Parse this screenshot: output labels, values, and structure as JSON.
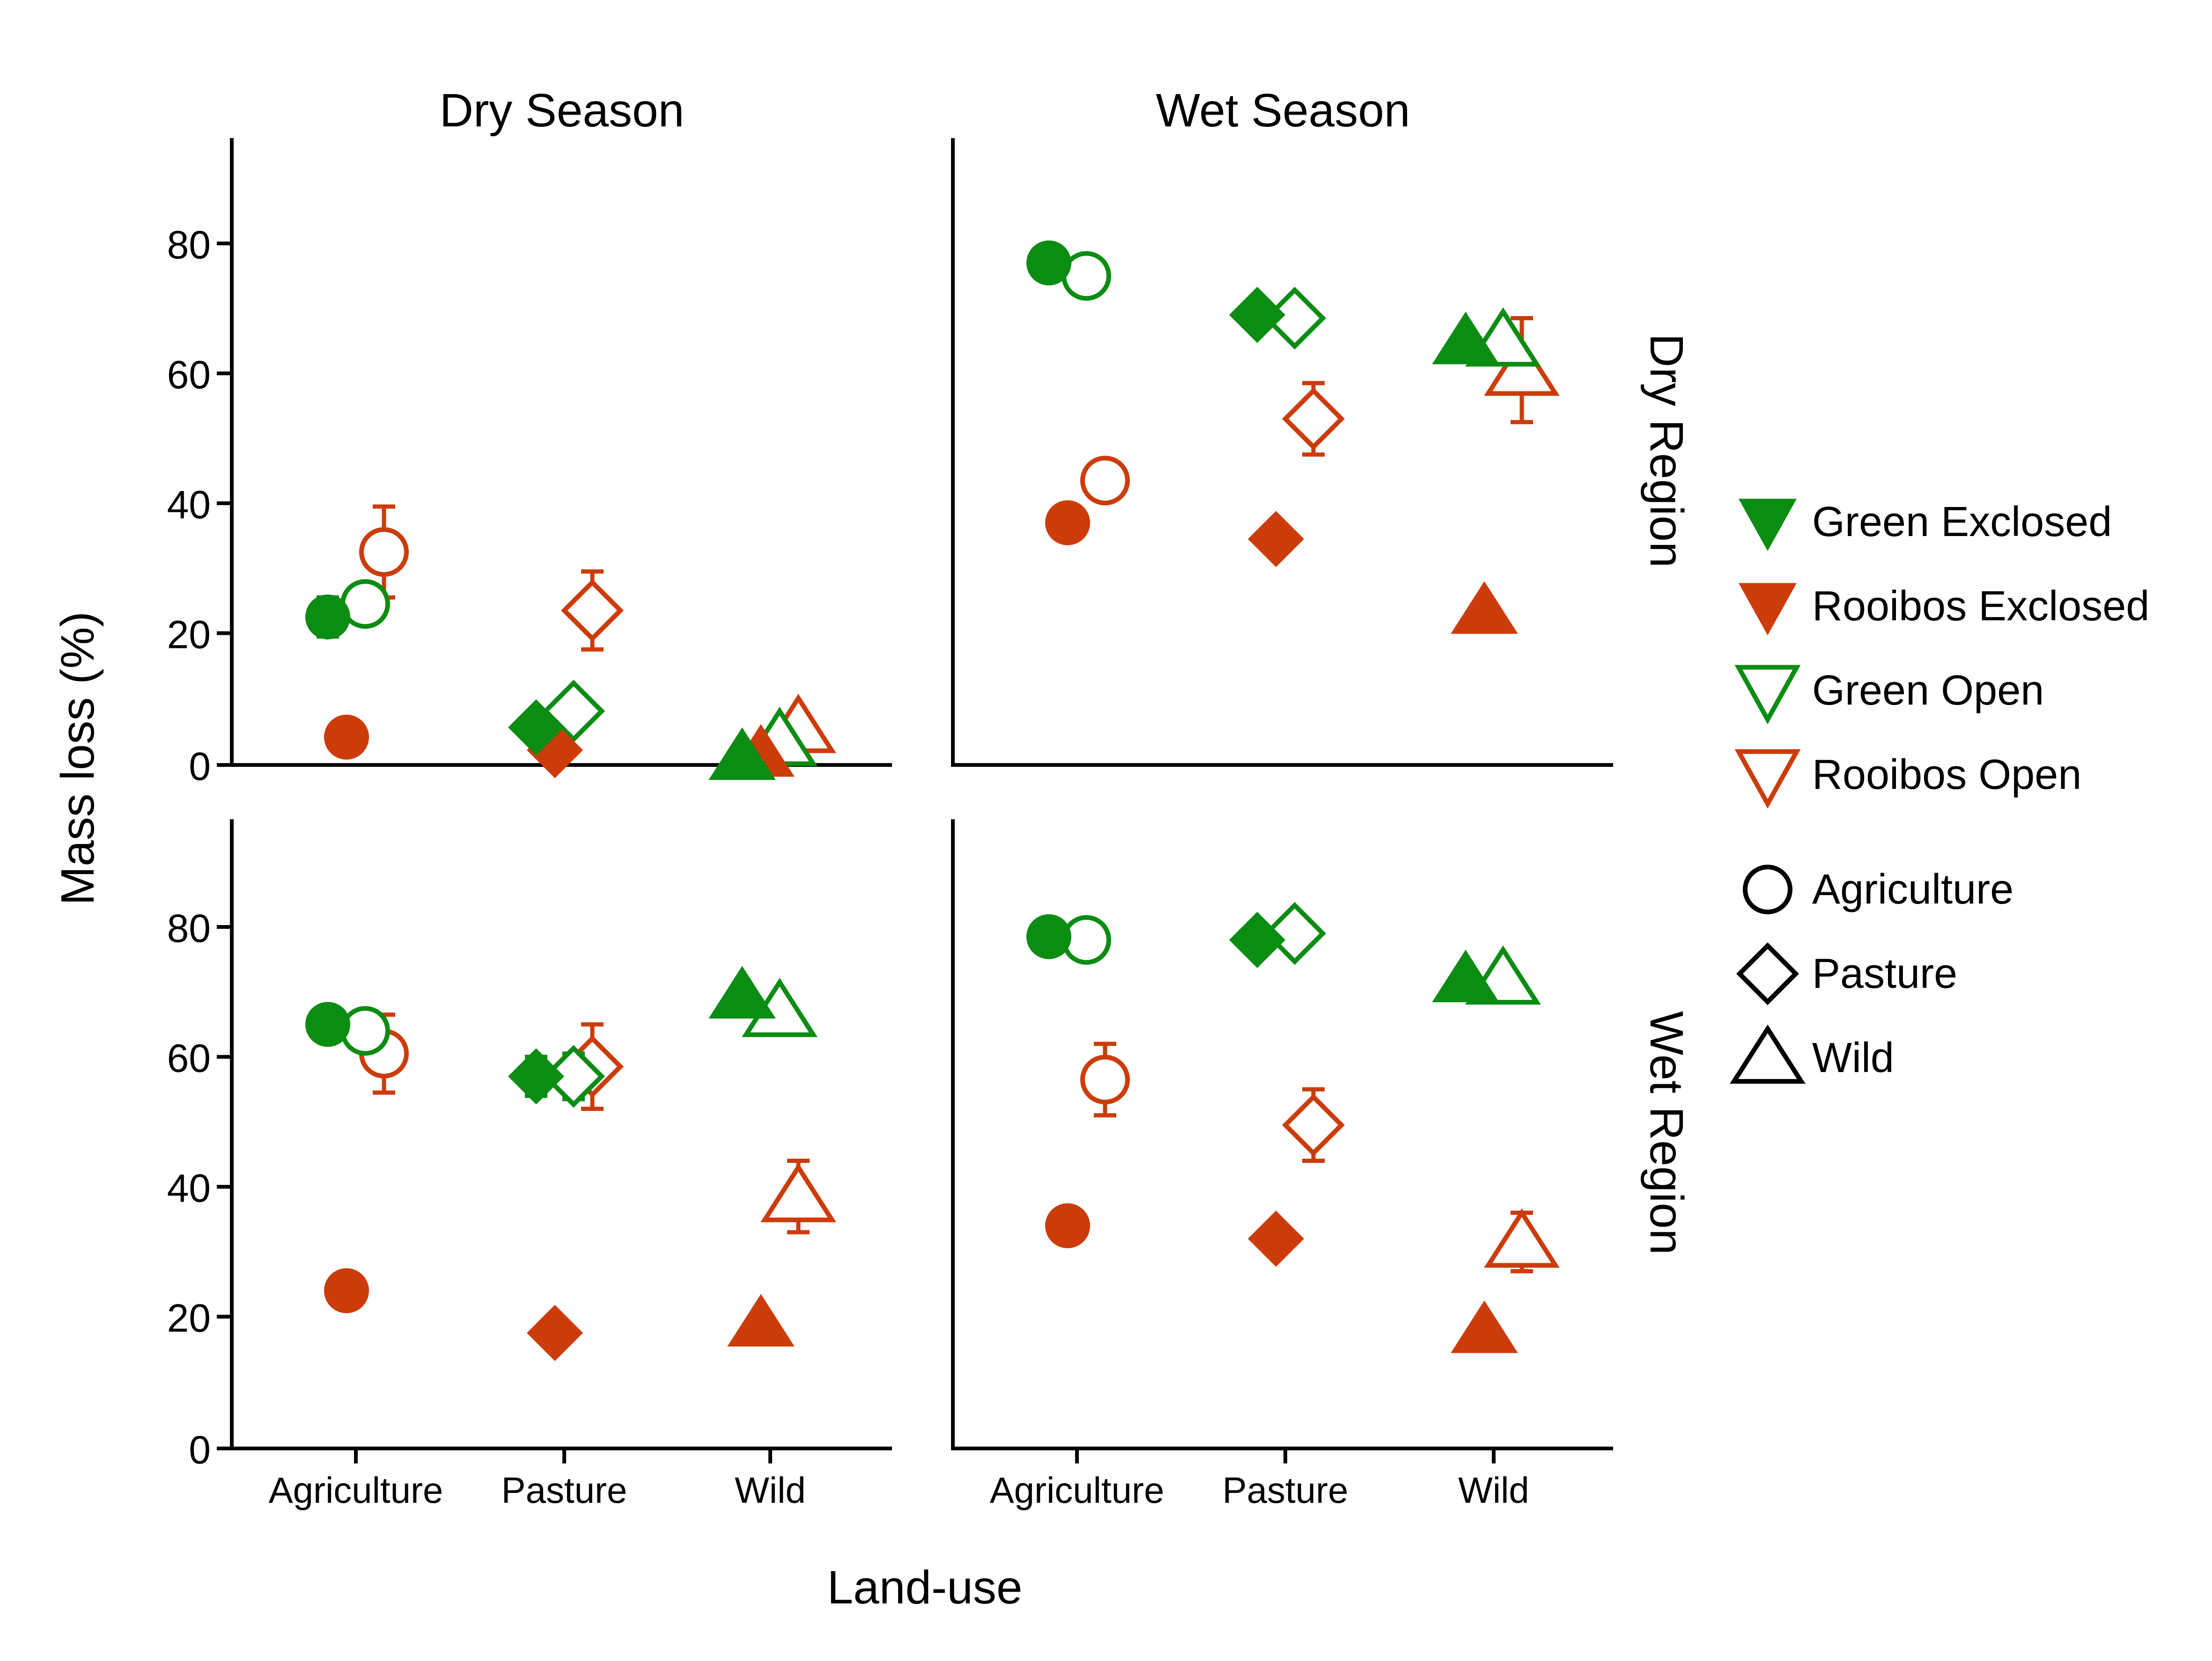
{
  "colors": {
    "green": "#0b8c12",
    "rooibos": "#cc3c0a",
    "axis": "#000000"
  },
  "chart_data": {
    "type": "scatter",
    "xlabel": "Land-use",
    "ylabel": "Mass loss (%)",
    "column_labels": [
      "Dry Season",
      "Wet Season"
    ],
    "row_labels": [
      "Dry Region",
      "Wet Region"
    ],
    "categories": [
      "Agriculture",
      "Pasture",
      "Wild"
    ],
    "yticks": [
      0,
      20,
      40,
      60,
      80
    ],
    "ylim": [
      0,
      95
    ],
    "grid": false,
    "legend": {
      "placement": "right",
      "treatments": [
        {
          "label": "Green Exclosed",
          "color": "green",
          "filled": true
        },
        {
          "label": "Rooibos Exclosed",
          "color": "rooibos",
          "filled": true
        },
        {
          "label": "Green Open",
          "color": "green",
          "filled": false
        },
        {
          "label": "Rooibos Open",
          "color": "rooibos",
          "filled": false
        }
      ],
      "land_uses": [
        {
          "label": "Agriculture",
          "shape": "circle"
        },
        {
          "label": "Pasture",
          "shape": "diamond"
        },
        {
          "label": "Wild",
          "shape": "triangle"
        }
      ]
    },
    "series_order": [
      "Green Exclosed",
      "Rooibos Exclosed",
      "Green Open",
      "Rooibos Open"
    ],
    "panels": [
      {
        "season": "Dry Season",
        "region": "Dry Region",
        "values": {
          "Agriculture": [
            [
              22.5,
              3
            ],
            [
              4,
              0
            ],
            [
              24.5,
              3
            ],
            [
              32.5,
              7
            ]
          ],
          "Pasture": [
            [
              5.5,
              1.5
            ],
            [
              2,
              0
            ],
            [
              8,
              1.5
            ],
            [
              23.5,
              6
            ]
          ],
          "Wild": [
            [
              1,
              1
            ],
            [
              1.5,
              0
            ],
            [
              3.5,
              1
            ],
            [
              5.5,
              1
            ]
          ]
        }
      },
      {
        "season": "Wet Season",
        "region": "Dry Region",
        "values": {
          "Agriculture": [
            [
              77,
              0
            ],
            [
              37,
              0
            ],
            [
              75,
              0
            ],
            [
              43.5,
              3
            ]
          ],
          "Pasture": [
            [
              69,
              0
            ],
            [
              34.5,
              0
            ],
            [
              68.5,
              0
            ],
            [
              53,
              5.5
            ]
          ],
          "Wild": [
            [
              65,
              0
            ],
            [
              23.5,
              0
            ],
            [
              65,
              0
            ],
            [
              60.5,
              8
            ]
          ]
        }
      },
      {
        "season": "Dry Season",
        "region": "Wet Region",
        "values": {
          "Agriculture": [
            [
              65,
              0
            ],
            [
              24,
              0
            ],
            [
              64,
              1.5
            ],
            [
              60.5,
              6
            ]
          ],
          "Pasture": [
            [
              57,
              3
            ],
            [
              17.5,
              0
            ],
            [
              57,
              3.5
            ],
            [
              58.5,
              6.5
            ]
          ],
          "Wild": [
            [
              69.5,
              0
            ],
            [
              19,
              0
            ],
            [
              67,
              0
            ],
            [
              38.5,
              5.5
            ]
          ]
        }
      },
      {
        "season": "Wet Season",
        "region": "Wet Region",
        "values": {
          "Agriculture": [
            [
              78.5,
              0
            ],
            [
              34,
              0
            ],
            [
              78,
              0
            ],
            [
              56.5,
              5.5
            ]
          ],
          "Pasture": [
            [
              78,
              0
            ],
            [
              32,
              0
            ],
            [
              79,
              0
            ],
            [
              49.5,
              5.5
            ]
          ],
          "Wild": [
            [
              72,
              0
            ],
            [
              18,
              0
            ],
            [
              72,
              0
            ],
            [
              31.5,
              4.5
            ]
          ]
        }
      }
    ]
  }
}
